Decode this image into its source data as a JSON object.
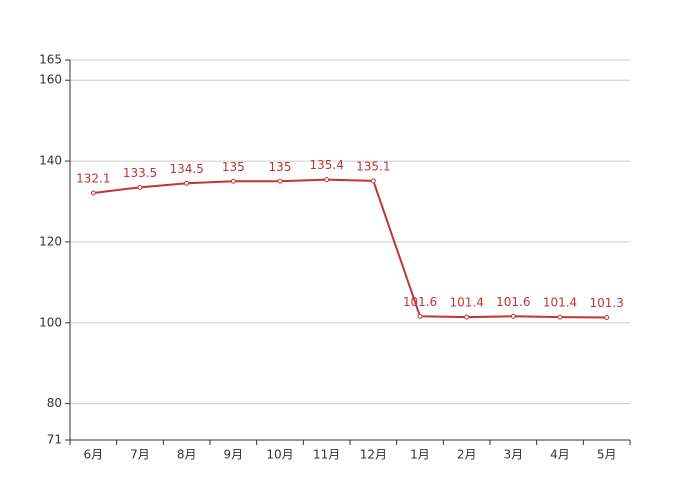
{
  "chart_data": {
    "type": "line",
    "categories": [
      "6月",
      "7月",
      "8月",
      "9月",
      "10月",
      "11月",
      "12月",
      "1月",
      "2月",
      "3月",
      "4月",
      "5月"
    ],
    "series": [
      {
        "color": "#c23531",
        "values": [
          132.1,
          133.5,
          134.5,
          135,
          135,
          135.4,
          135.1,
          101.6,
          101.4,
          101.6,
          101.4,
          101.3
        ]
      }
    ],
    "ylim": [
      71,
      165
    ],
    "yticks": [
      71,
      80,
      100,
      120,
      140,
      160,
      165
    ],
    "grid": true,
    "data_labels": true
  }
}
